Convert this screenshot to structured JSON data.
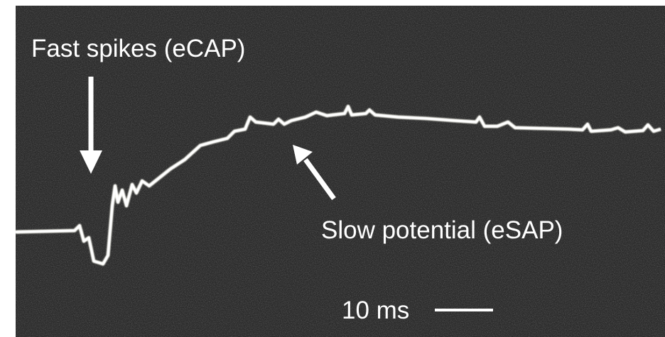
{
  "annotations": {
    "fast_spikes": "Fast spikes (eCAP)",
    "slow_potential": "Slow potential (eSAP)",
    "scale_bar": "10 ms"
  }
}
